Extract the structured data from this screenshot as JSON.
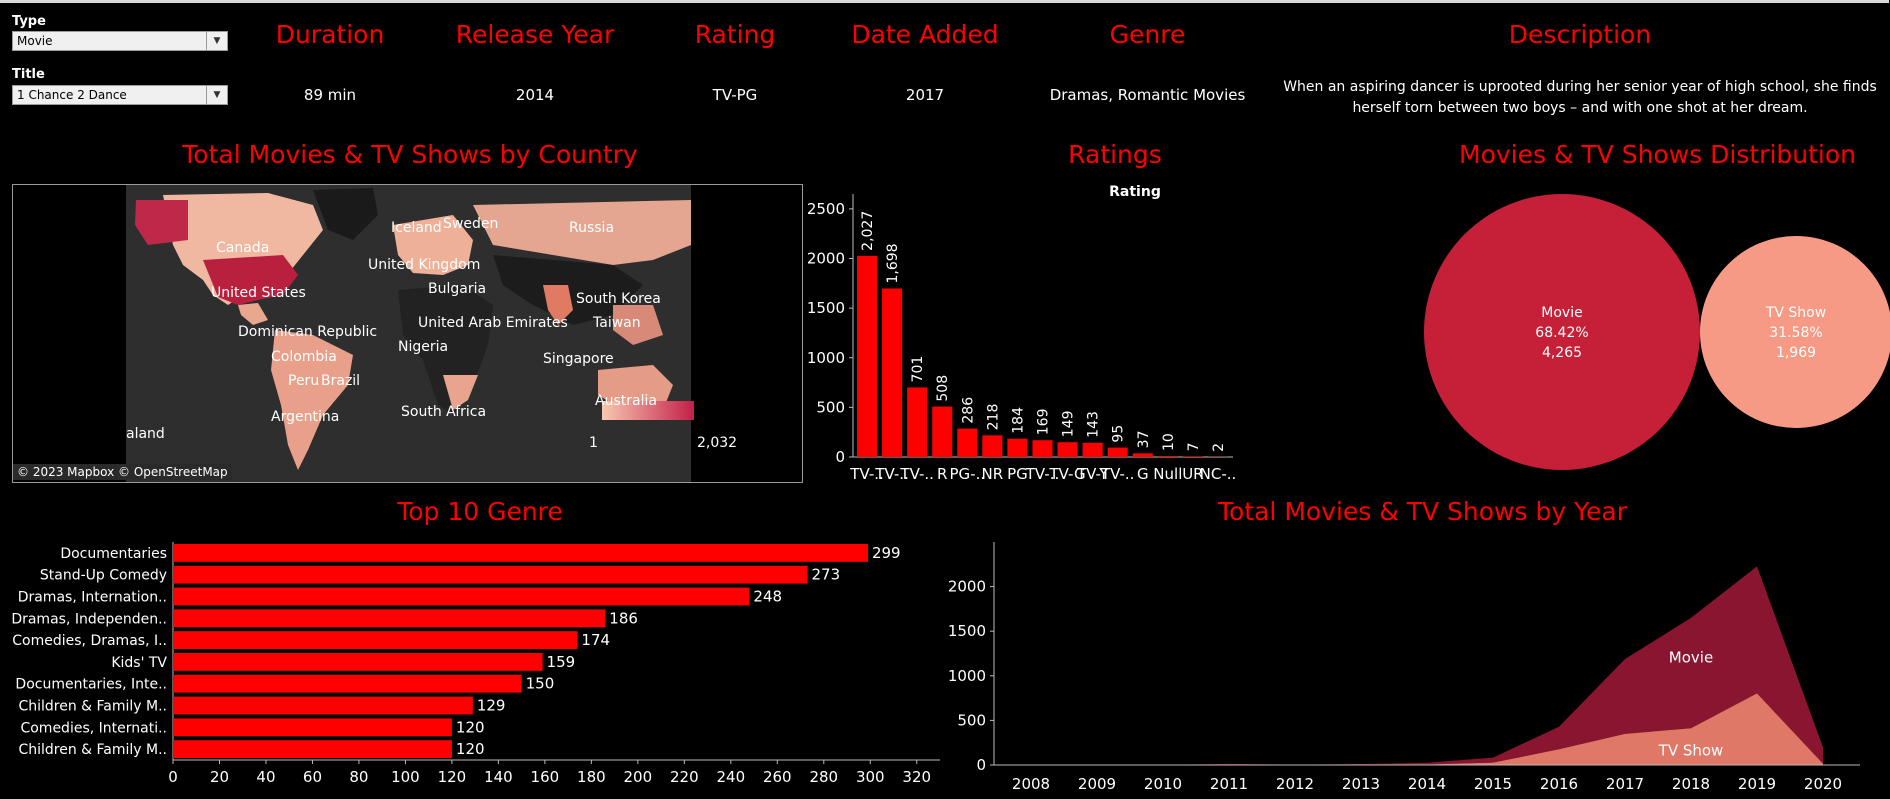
{
  "filters": {
    "type_label": "Type",
    "type_value": "Movie",
    "title_label": "Title",
    "title_value": "1 Chance 2 Dance"
  },
  "details": {
    "duration_header": "Duration",
    "duration_value": "89 min",
    "release_header": "Release Year",
    "release_value": "2014",
    "rating_header": "Rating",
    "rating_value": "TV-PG",
    "date_header": "Date Added",
    "date_value": "2017",
    "genre_header": "Genre",
    "genre_value": "Dramas, Romantic Movies",
    "description_header": "Description",
    "description_line1": "When an aspiring dancer is uprooted during her senior year of high school, she finds",
    "description_line2": "herself torn between two boys – and with one shot at her dream."
  },
  "map": {
    "title": "Total Movies & TV Shows by Country",
    "labels": [
      "Iceland",
      "Sweden",
      "Russia",
      "Canada",
      "United Kingdom",
      "Bulgaria",
      "United States",
      "South Korea",
      "Dominican Republic",
      "United Arab Emirates",
      "Taiwan",
      "Colombia",
      "Nigeria",
      "Singapore",
      "Peru",
      "Brazil",
      "Australia",
      "Argentina",
      "South Africa",
      "aland"
    ],
    "legend_min": "1",
    "legend_max": "2,032",
    "attribution": "© 2023 Mapbox © OpenStreetMap",
    "colors": {
      "low": "#f8c8b0",
      "high": "#c2204a",
      "sea": "#2e2e2e",
      "land": "#1a1a1a"
    }
  },
  "ratings": {
    "title": "Ratings",
    "axis_title": "Rating"
  },
  "distribution": {
    "title": "Movies & TV Shows Distribution",
    "movie": {
      "name": "Movie",
      "pct": "68.42%",
      "count": "4,265",
      "color": "#c62038"
    },
    "tv": {
      "name": "TV Show",
      "pct": "31.58%",
      "count": "1,969",
      "color": "#f79a85"
    }
  },
  "genre": {
    "title": "Top 10 Genre"
  },
  "year": {
    "title": "Total Movies & TV Shows by Year",
    "movie_label": "Movie",
    "tv_label": "TV Show"
  },
  "chart_data": [
    {
      "type": "bar",
      "title": "Ratings",
      "xlabel": "Rating",
      "ylabel": "",
      "categories": [
        "TV-..",
        "TV-..",
        "TV-..",
        "R",
        "PG-..",
        "NR",
        "PG",
        "TV-..",
        "TV-G",
        "TV-Y",
        "TV-..",
        "G",
        "Null",
        "UR",
        "NC-.."
      ],
      "values": [
        2027,
        1698,
        701,
        508,
        286,
        218,
        184,
        169,
        149,
        143,
        95,
        37,
        10,
        7,
        2
      ],
      "value_labels": [
        "2,027",
        "1,698",
        "701",
        "508",
        "286",
        "218",
        "184",
        "169",
        "149",
        "143",
        "95",
        "37",
        "10",
        "7",
        "2"
      ],
      "ylim": [
        0,
        2650
      ],
      "yticks": [
        0,
        500,
        1000,
        1500,
        2000,
        2500
      ],
      "color": "#ff0000"
    },
    {
      "type": "bar",
      "orientation": "horizontal",
      "title": "Top 10 Genre",
      "categories": [
        "Documentaries",
        "Stand-Up Comedy",
        "Dramas, Internation..",
        "Dramas, Independen..",
        "Comedies, Dramas, I..",
        "Kids' TV",
        "Documentaries, Inte..",
        "Children & Family M..",
        "Comedies, Internati..",
        "Children & Family M.."
      ],
      "values": [
        299,
        273,
        248,
        186,
        174,
        159,
        150,
        129,
        120,
        120
      ],
      "xlim": [
        0,
        330
      ],
      "xticks": [
        0,
        20,
        40,
        60,
        80,
        100,
        120,
        140,
        160,
        180,
        200,
        220,
        240,
        260,
        280,
        300,
        320
      ],
      "color": "#ff0000"
    },
    {
      "type": "area",
      "title": "Total Movies & TV Shows by Year",
      "x": [
        2008,
        2009,
        2010,
        2011,
        2012,
        2013,
        2014,
        2015,
        2016,
        2017,
        2018,
        2019,
        2020
      ],
      "series": [
        {
          "name": "Movie",
          "values": [
            1,
            2,
            1,
            13,
            3,
            6,
            19,
            56,
            253,
            839,
            1237,
            1424,
            184
          ],
          "color": "#8a1530"
        },
        {
          "name": "TV Show",
          "values": [
            1,
            0,
            0,
            0,
            0,
            5,
            6,
            26,
            176,
            349,
            412,
            803,
            14
          ],
          "color": "#e07868"
        }
      ],
      "ylim": [
        0,
        2500
      ],
      "yticks": [
        0,
        500,
        1000,
        1500,
        2000
      ],
      "stacked": true
    }
  ]
}
